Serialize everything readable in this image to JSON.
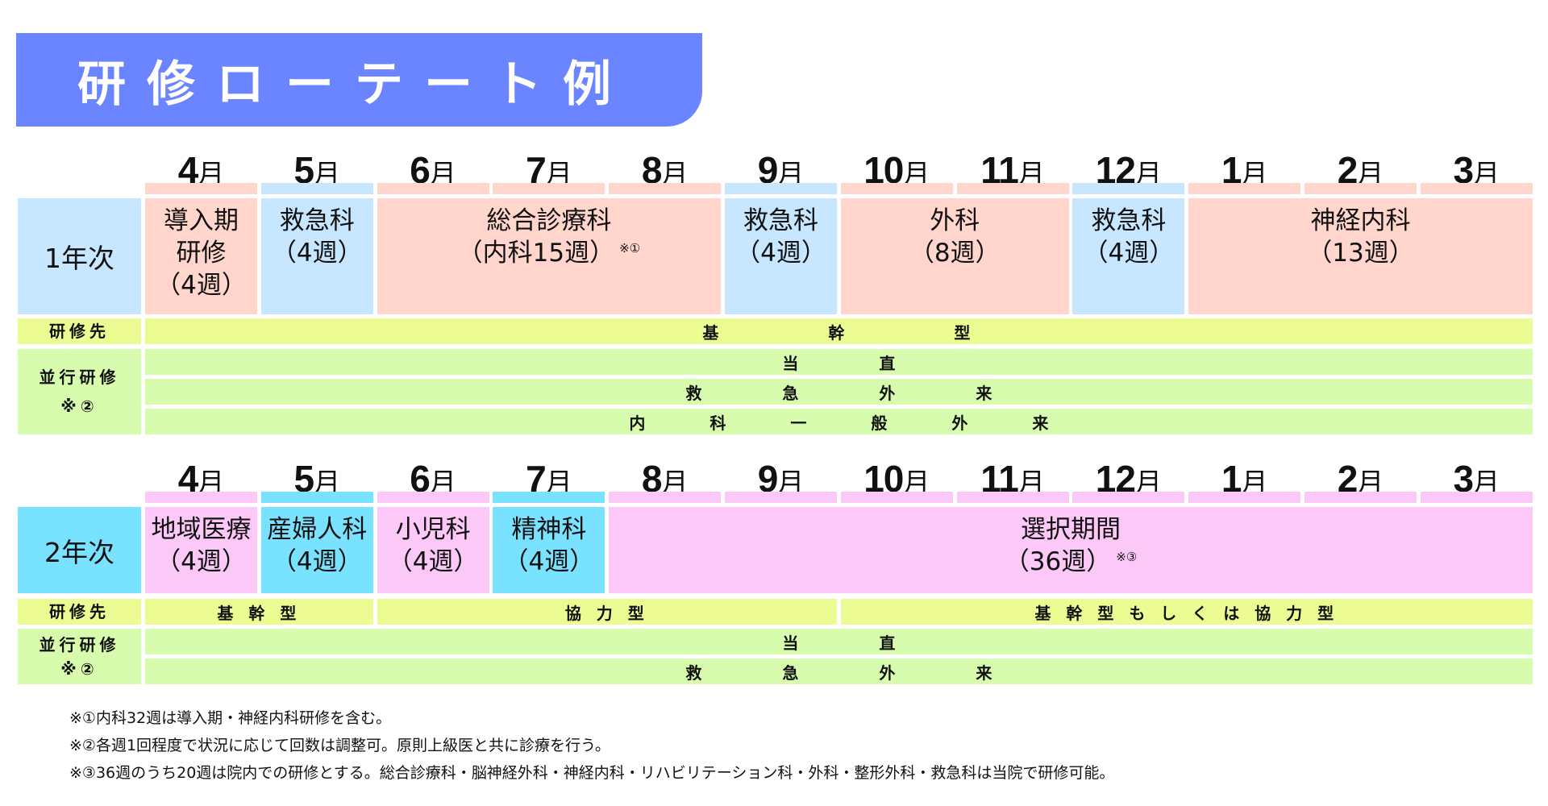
{
  "title": "研修ローテート例",
  "colors": {
    "banner": "#6b84ff",
    "year1_pink": "#ffd5cc",
    "year1_blue": "#c7e6ff",
    "year2_pink": "#fcc8f8",
    "year2_cyan": "#78e2ff",
    "kenshusaki_yellow": "#ecfc92",
    "heiko_green": "#d8fcae"
  },
  "months": [
    {
      "num": "4",
      "unit": "月"
    },
    {
      "num": "5",
      "unit": "月"
    },
    {
      "num": "6",
      "unit": "月"
    },
    {
      "num": "7",
      "unit": "月"
    },
    {
      "num": "8",
      "unit": "月"
    },
    {
      "num": "9",
      "unit": "月"
    },
    {
      "num": "10",
      "unit": "月"
    },
    {
      "num": "11",
      "unit": "月"
    },
    {
      "num": "12",
      "unit": "月"
    },
    {
      "num": "1",
      "unit": "月"
    },
    {
      "num": "2",
      "unit": "月"
    },
    {
      "num": "3",
      "unit": "月"
    }
  ],
  "year1": {
    "label": "1年次",
    "rotations": [
      {
        "line1": "導入期",
        "line2": "研修",
        "line3": "（4週）",
        "start": 0,
        "span": 1,
        "color": "pink"
      },
      {
        "line1": "救急科",
        "line2": "（4週）",
        "start": 1,
        "span": 1,
        "color": "blue"
      },
      {
        "line1": "総合診療科",
        "line2": "（内科15週）",
        "note": "※①",
        "start": 2,
        "span": 3,
        "color": "pink"
      },
      {
        "line1": "救急科",
        "line2": "（4週）",
        "start": 5,
        "span": 1,
        "color": "blue"
      },
      {
        "line1": "外科",
        "line2": "（8週）",
        "start": 6,
        "span": 2,
        "color": "pink"
      },
      {
        "line1": "救急科",
        "line2": "（4週）",
        "start": 8,
        "span": 1,
        "color": "blue"
      },
      {
        "line1": "神経内科",
        "line2": "（13週）",
        "start": 9,
        "span": 3,
        "color": "pink"
      }
    ],
    "kenshusaki_label": "研修先",
    "kenshusaki": [
      {
        "text": "基　　　　　幹　　　　　型",
        "start": 0,
        "span": 12
      }
    ],
    "heiko_label": "並行研修",
    "heiko_note": "※②",
    "heiko_rows": [
      "当　　　　　直",
      "救　　　　　急　　　　　外　　　　　来",
      "内　　　　科　　　　一　　　　般　　　　外　　　　来"
    ]
  },
  "year2": {
    "label": "2年次",
    "rotations": [
      {
        "line1": "地域医療",
        "line2": "（4週）",
        "start": 0,
        "span": 1,
        "color": "pink"
      },
      {
        "line1": "産婦人科",
        "line2": "（4週）",
        "start": 1,
        "span": 1,
        "color": "cyan"
      },
      {
        "line1": "小児科",
        "line2": "（4週）",
        "start": 2,
        "span": 1,
        "color": "pink"
      },
      {
        "line1": "精神科",
        "line2": "（4週）",
        "start": 3,
        "span": 1,
        "color": "cyan"
      },
      {
        "line1": "選択期間",
        "line2": "（36週）",
        "note": "※③",
        "start": 4,
        "span": 8,
        "color": "pink"
      }
    ],
    "kenshusaki_label": "研修先",
    "kenshusaki": [
      {
        "text": "基 幹 型",
        "start": 0,
        "span": 2
      },
      {
        "text": "協 力 型",
        "start": 2,
        "span": 4
      },
      {
        "text": "基 幹 型 も し く は 協 力 型",
        "start": 6,
        "span": 6
      }
    ],
    "heiko_label": "並行研修",
    "heiko_note": "※②",
    "heiko_rows": [
      "当　　　　　直",
      "救　　　　　急　　　　　外　　　　　来"
    ]
  },
  "footnotes": [
    "※①内科32週は導入期・神経内科研修を含む。",
    "※②各週1回程度で状況に応じて回数は調整可。原則上級医と共に診療を行う。",
    "※③36週のうち20週は院内での研修とする。総合診療科・脳神経外科・神経内科・リハビリテーション科・外科・整形外科・救急科は当院で研修可能。"
  ]
}
